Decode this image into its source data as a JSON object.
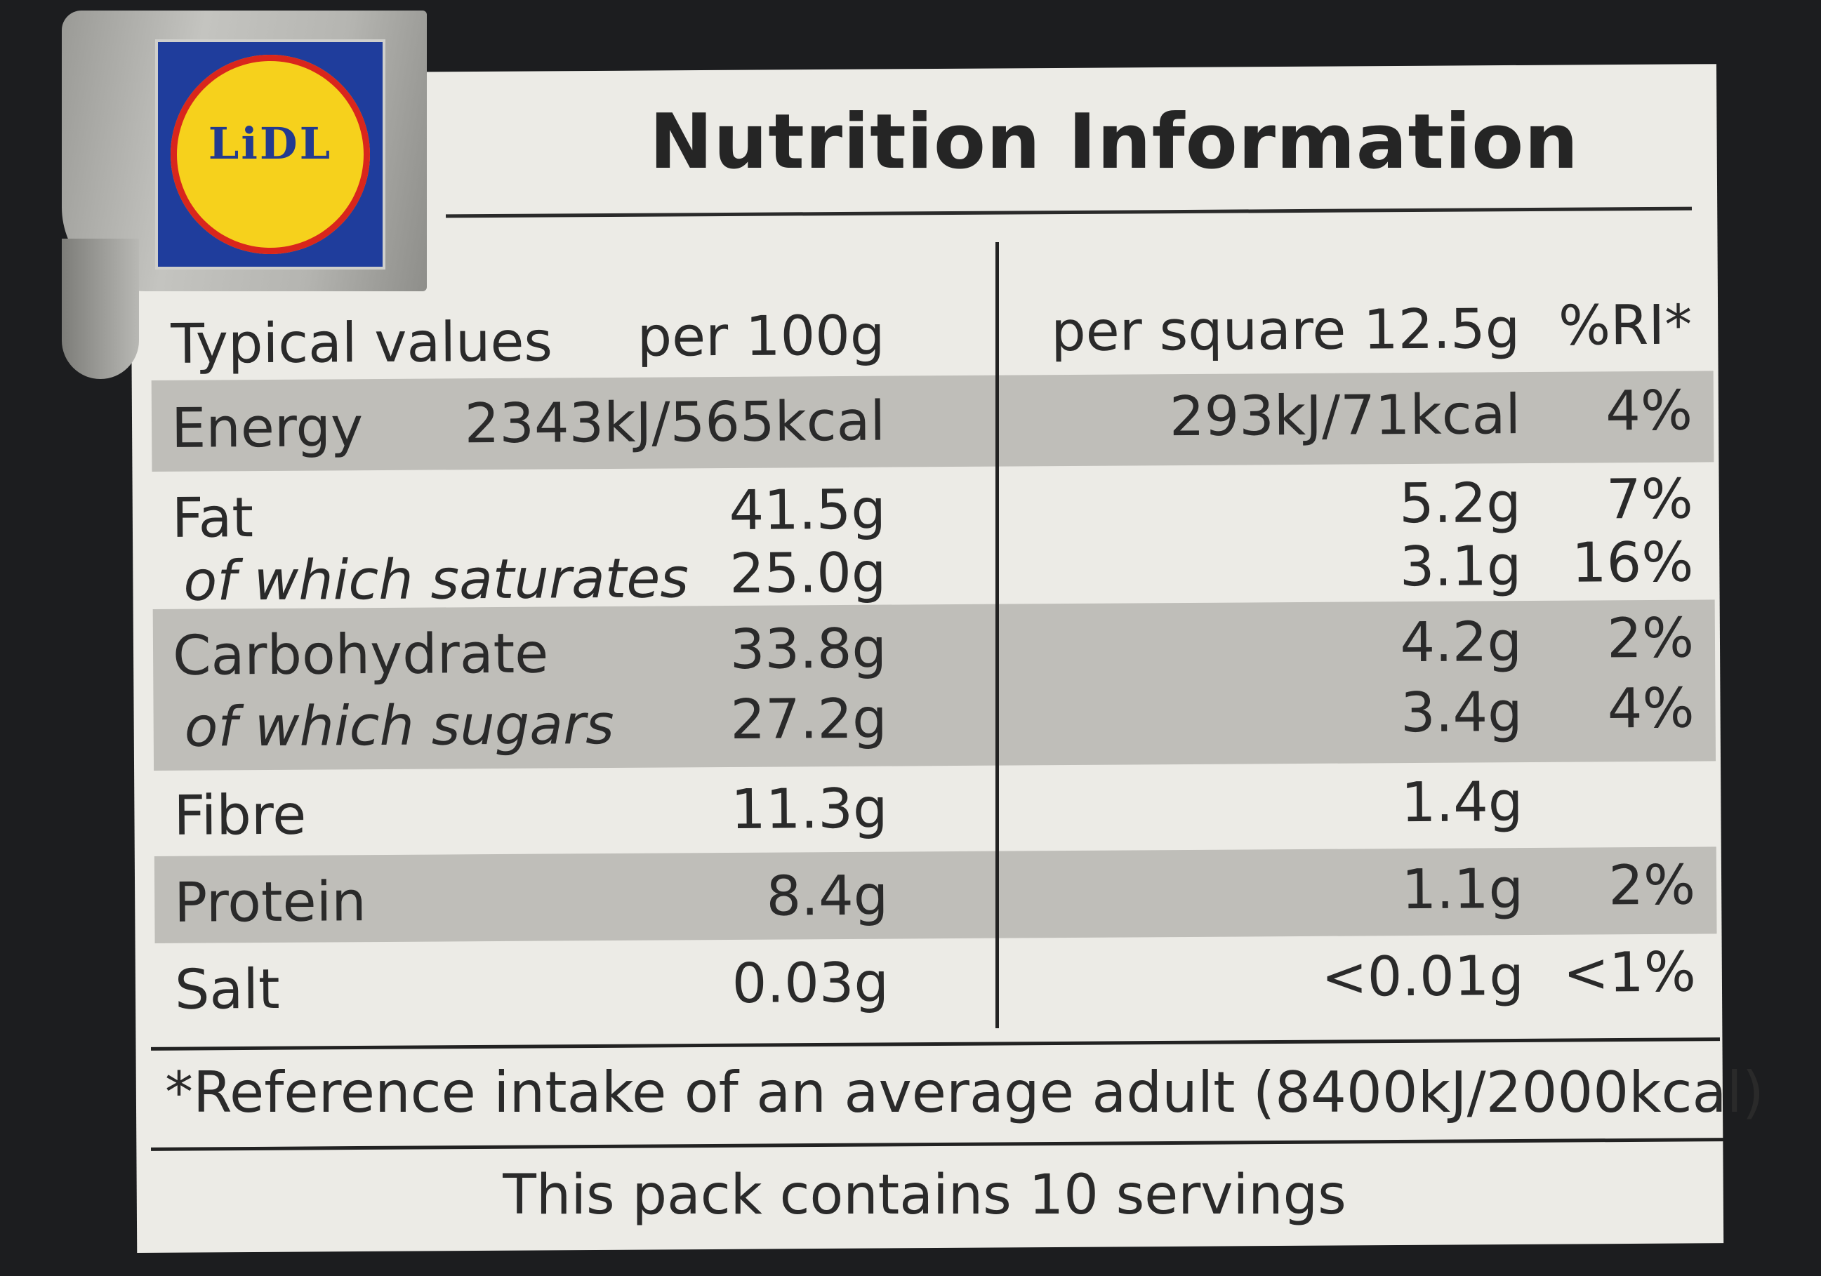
{
  "brand": {
    "logo_text": "LiDL",
    "colors": {
      "blue": "#1f3d9c",
      "yellow": "#f6d11c",
      "red": "#d9261c"
    }
  },
  "title": "Nutrition Information",
  "table": {
    "headers": {
      "typical": "Typical values",
      "per100": "per 100g",
      "per_serving": "per square 12.5g",
      "ri": "%RI*"
    },
    "rows": [
      {
        "name": "Energy",
        "per100": "2343kJ/565kcal",
        "per_serving": "293kJ/71kcal",
        "ri": "4%"
      },
      {
        "name": "Fat",
        "per100": "41.5g",
        "per_serving": "5.2g",
        "ri": "7%"
      },
      {
        "name": "of which saturates",
        "per100": "25.0g",
        "per_serving": "3.1g",
        "ri": "16%"
      },
      {
        "name": "Carbohydrate",
        "per100": "33.8g",
        "per_serving": "4.2g",
        "ri": "2%"
      },
      {
        "name": "of which sugars",
        "per100": "27.2g",
        "per_serving": "3.4g",
        "ri": "4%"
      },
      {
        "name": "Fibre",
        "per100": "11.3g",
        "per_serving": "1.4g",
        "ri": ""
      },
      {
        "name": "Protein",
        "per100": "8.4g",
        "per_serving": "1.1g",
        "ri": "2%"
      },
      {
        "name": "Salt",
        "per100": "0.03g",
        "per_serving": "<0.01g",
        "ri": "<1%"
      }
    ]
  },
  "footnote": "*Reference intake of an average adult (8400kJ/2000kcal)",
  "servings": "This pack contains 10 servings"
}
